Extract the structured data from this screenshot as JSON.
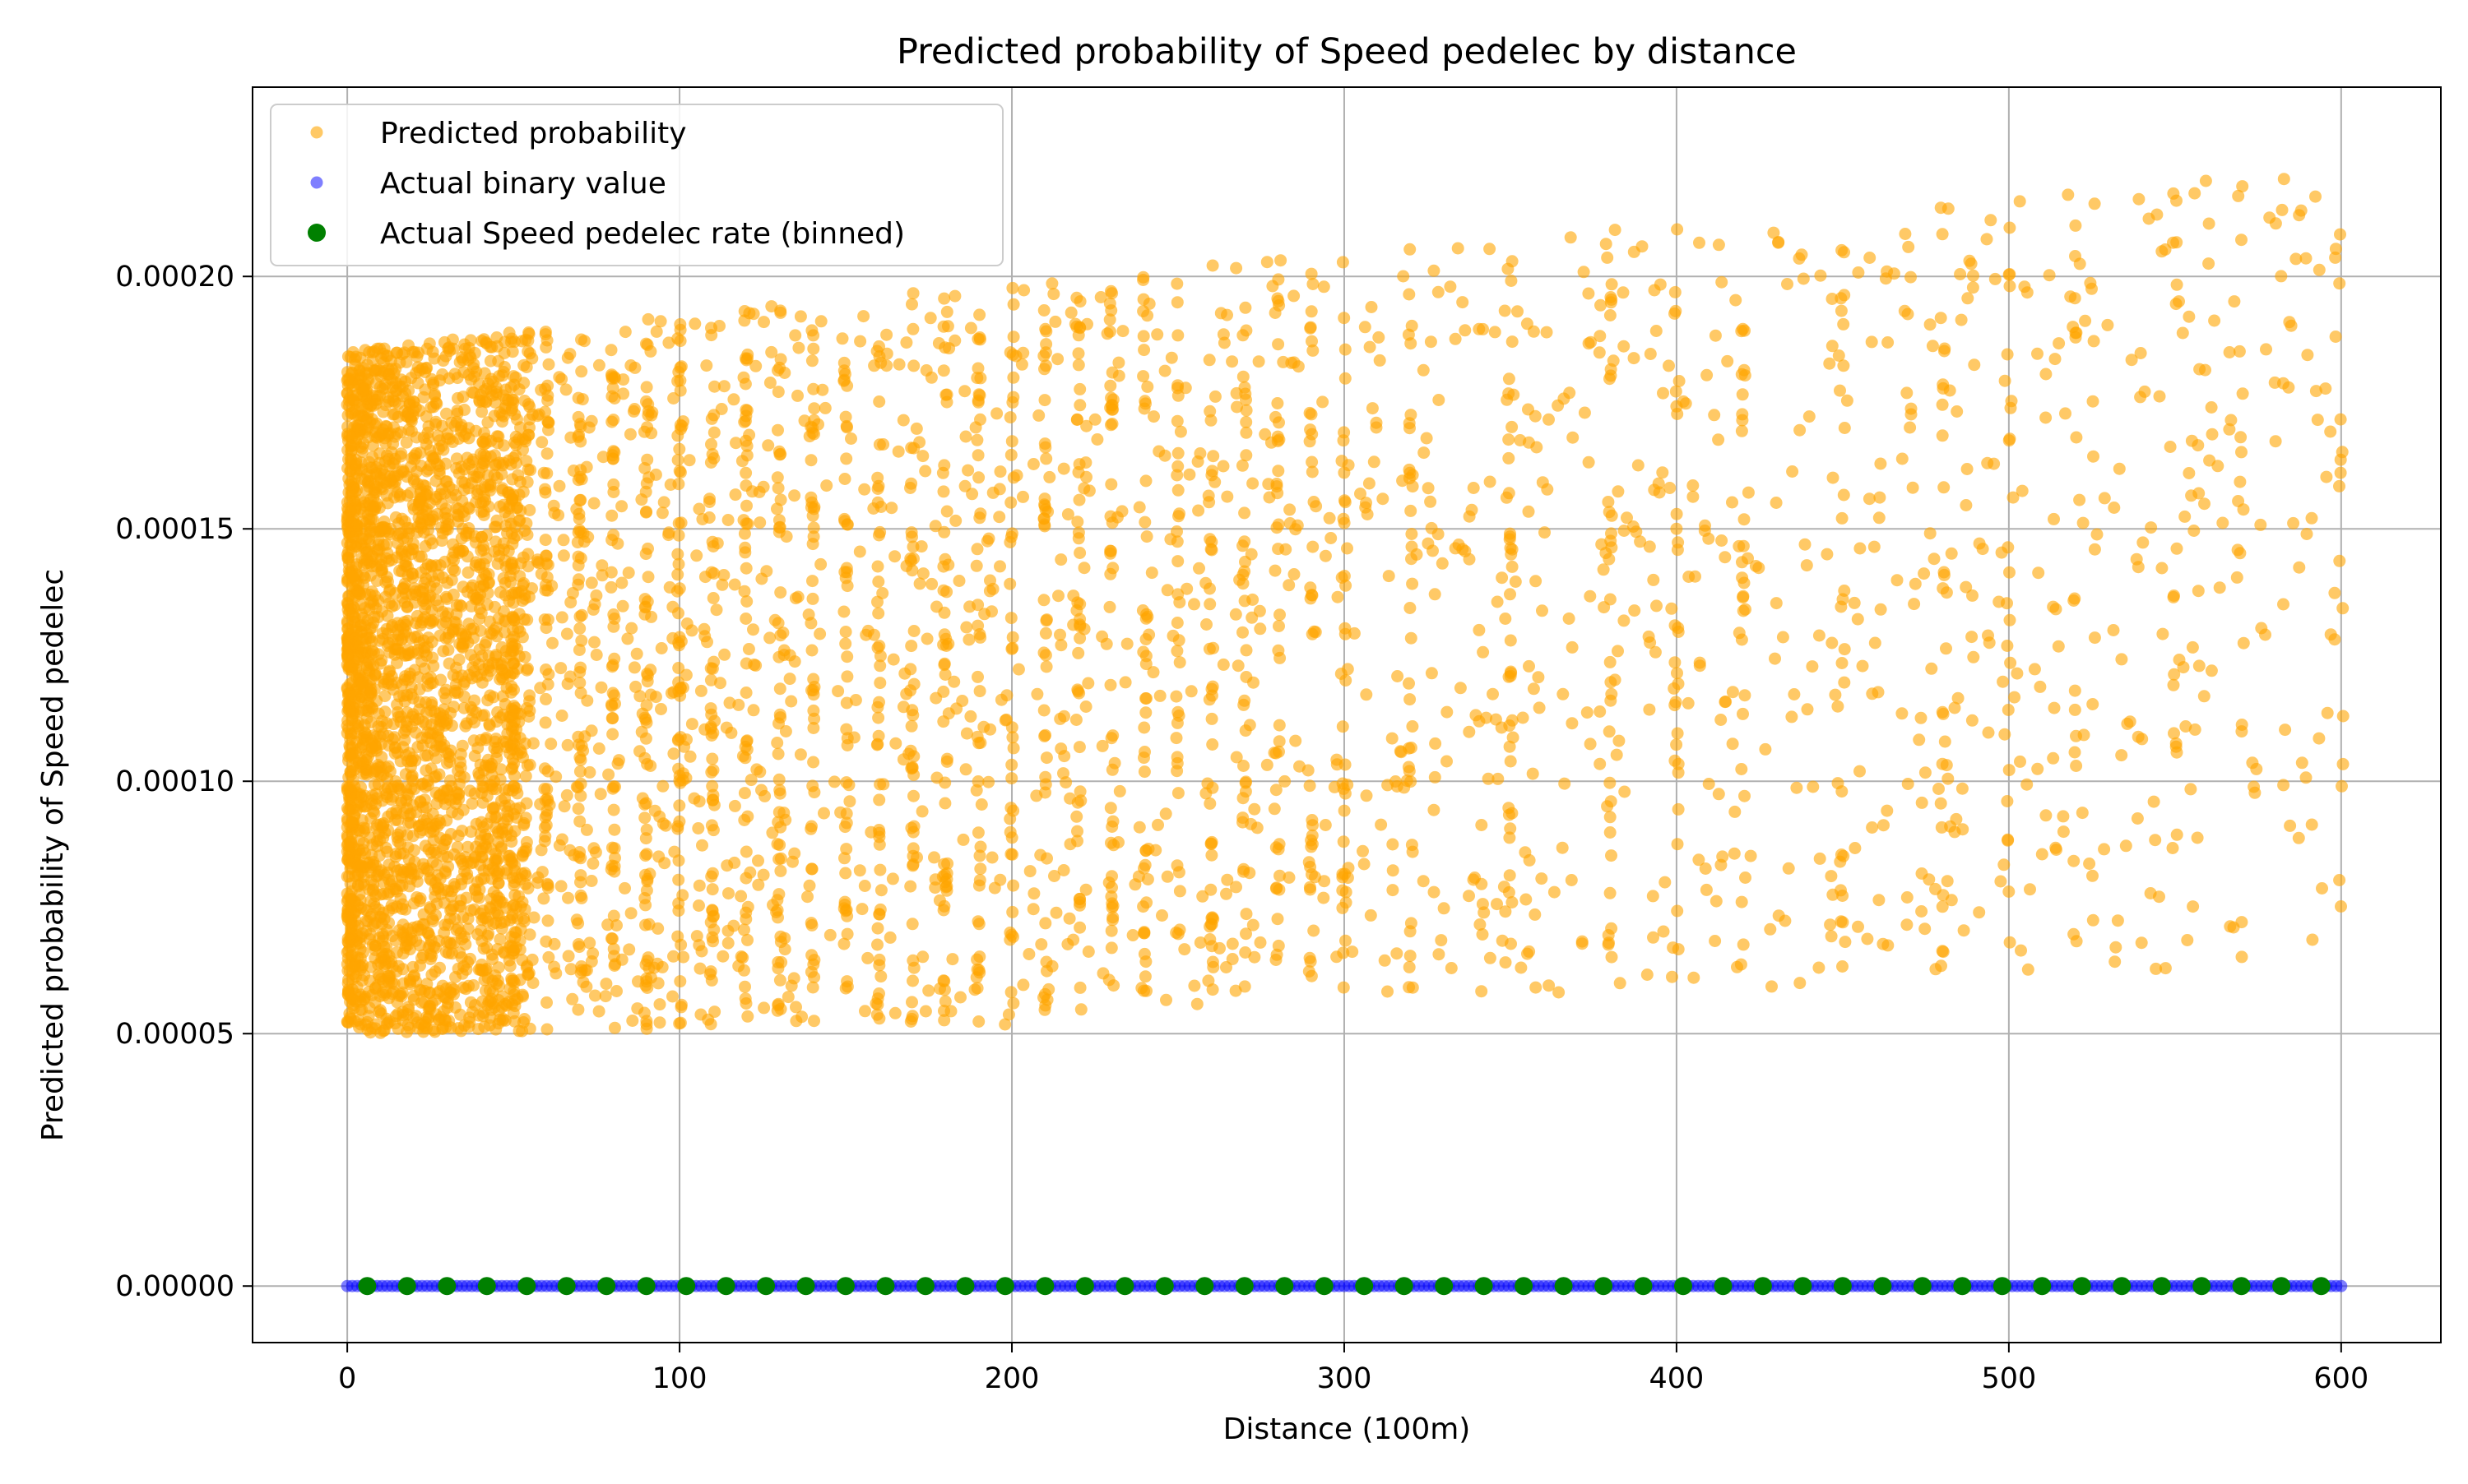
{
  "chart_data": {
    "type": "scatter",
    "title": "Predicted probability of Speed pedelec by distance",
    "xlabel": "Distance (100m)",
    "ylabel": "Predicted probability of Speed pedelec",
    "xlim": [
      -28.5,
      630
    ],
    "ylim": [
      -1.12e-05,
      0.0002375
    ],
    "x_ticks": [
      0,
      100,
      200,
      300,
      400,
      500,
      600
    ],
    "x_tick_labels": [
      "0",
      "100",
      "200",
      "300",
      "400",
      "500",
      "600"
    ],
    "y_ticks": [
      0,
      5e-05,
      0.0001,
      0.00015,
      0.0002
    ],
    "y_tick_labels": [
      "0.00000",
      "0.00005",
      "0.00010",
      "0.00015",
      "0.00020"
    ],
    "grid": true,
    "legend_position": "top-left",
    "series": [
      {
        "name": "Predicted probability",
        "color": "#ffa500",
        "opacity": 0.6,
        "description_of_distribution": "dense cloud",
        "x_range": [
          0,
          600
        ],
        "y_range_at_x0": [
          5e-05,
          0.000185
        ],
        "y_range_at_x600": [
          6.3e-05,
          0.000222
        ],
        "dense_columns_x": [
          50,
          60,
          70,
          80,
          90,
          100,
          110,
          120,
          130,
          140,
          150,
          160,
          170,
          180,
          190,
          200,
          210,
          220,
          230,
          240,
          250,
          260,
          270,
          280,
          290,
          300,
          320,
          350,
          380,
          400,
          420,
          450,
          480,
          500,
          520,
          550,
          570,
          600
        ]
      },
      {
        "name": "Actual binary value",
        "color": "#0000ff",
        "opacity": 0.5,
        "x_range": [
          0,
          600
        ],
        "y_value": 0
      },
      {
        "name": "Actual Speed pedelec rate (binned)",
        "color": "#008000",
        "x": [
          6,
          18,
          30,
          42,
          54,
          66,
          78,
          90,
          102,
          114,
          126,
          138,
          150,
          162,
          174,
          186,
          198,
          210,
          222,
          234,
          246,
          258,
          270,
          282,
          294,
          306,
          318,
          330,
          342,
          354,
          366,
          378,
          390,
          402,
          414,
          426,
          438,
          450,
          462,
          474,
          486,
          498,
          510,
          522,
          534,
          546,
          558,
          570,
          582,
          594
        ],
        "y": [
          0,
          0,
          0,
          0,
          0,
          0,
          0,
          0,
          0,
          0,
          0,
          0,
          0,
          0,
          0,
          0,
          0,
          0,
          0,
          0,
          0,
          0,
          0,
          0,
          0,
          0,
          0,
          0,
          0,
          0,
          0,
          0,
          0,
          0,
          0,
          0,
          0,
          0,
          0,
          0,
          0,
          0,
          0,
          0,
          0,
          0,
          0,
          0,
          0,
          0
        ]
      }
    ]
  }
}
